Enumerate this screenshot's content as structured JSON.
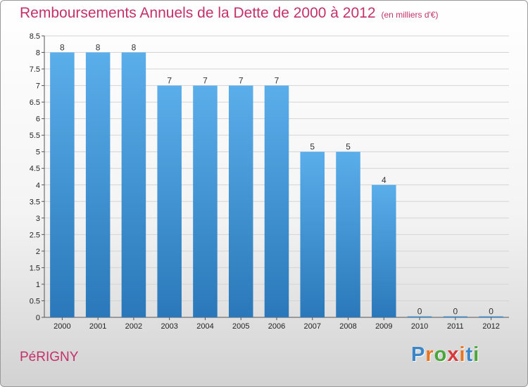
{
  "chart_data": {
    "type": "bar",
    "title": "Remboursements Annuels de la Dette de 2000 à 2012",
    "subtitle": "(en milliers d'€)",
    "categories": [
      "2000",
      "2001",
      "2002",
      "2003",
      "2004",
      "2005",
      "2006",
      "2007",
      "2008",
      "2009",
      "2010",
      "2011",
      "2012"
    ],
    "values": [
      8,
      8,
      8,
      7,
      7,
      7,
      7,
      5,
      5,
      4,
      0,
      0,
      0
    ],
    "data_labels": [
      "8",
      "8",
      "8",
      "7",
      "7",
      "7",
      "7",
      "5",
      "5",
      "4",
      "0",
      "0",
      "0"
    ],
    "ylim": [
      0,
      8.5
    ],
    "yticks": [
      "0",
      "0.5",
      "1",
      "1.5",
      "2",
      "2.5",
      "3",
      "3.5",
      "4",
      "4.5",
      "5",
      "5.5",
      "6",
      "6.5",
      "7",
      "7.5",
      "8",
      "8.5"
    ],
    "grid": true,
    "bar_color_top": "#5aaeea",
    "bar_color_bottom": "#2a78b9"
  },
  "footer": {
    "city": "PéRIGNY",
    "brand_letters": [
      {
        "ch": "P",
        "color": "#3a86c8"
      },
      {
        "ch": "r",
        "color": "#e8741e"
      },
      {
        "ch": "o",
        "color": "#4aa63a"
      },
      {
        "ch": "x",
        "color": "#d83a3a"
      },
      {
        "ch": "i",
        "color": "#e8741e"
      },
      {
        "ch": "t",
        "color": "#3a86c8"
      },
      {
        "ch": "i",
        "color": "#4aa63a"
      }
    ]
  }
}
